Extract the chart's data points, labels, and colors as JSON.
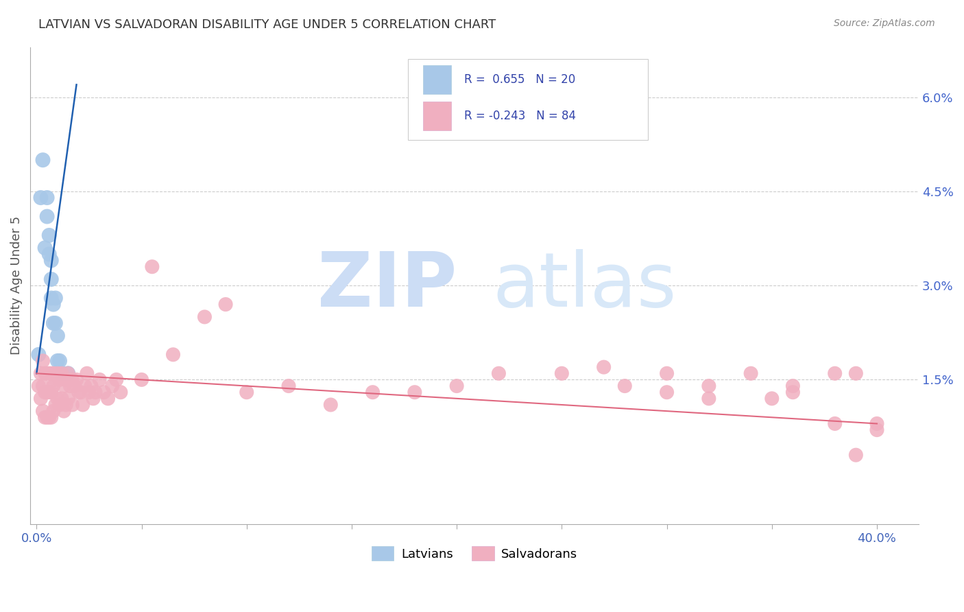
{
  "title": "LATVIAN VS SALVADORAN DISABILITY AGE UNDER 5 CORRELATION CHART",
  "source": "Source: ZipAtlas.com",
  "ylabel": "Disability Age Under 5",
  "ytick_labels": [
    "6.0%",
    "4.5%",
    "3.0%",
    "1.5%"
  ],
  "ytick_values": [
    0.06,
    0.045,
    0.03,
    0.015
  ],
  "xtick_values": [
    0.0,
    0.05,
    0.1,
    0.15,
    0.2,
    0.25,
    0.3,
    0.35,
    0.4
  ],
  "xlim": [
    -0.003,
    0.42
  ],
  "ylim": [
    -0.008,
    0.068
  ],
  "latvian_R": 0.655,
  "latvian_N": 20,
  "salvadoran_R": -0.243,
  "salvadoran_N": 84,
  "latvian_color": "#a8c8e8",
  "latvian_line_color": "#2060b0",
  "salvadoran_color": "#f0afc0",
  "salvadoran_line_color": "#e06880",
  "background_color": "#ffffff",
  "legend_color": "#3344aa",
  "latvian_line_x": [
    0.0,
    0.019
  ],
  "latvian_line_y": [
    0.016,
    0.062
  ],
  "salvadoran_line_x": [
    0.0,
    0.4
  ],
  "salvadoran_line_y": [
    0.016,
    0.008
  ],
  "latvian_points_x": [
    0.001,
    0.002,
    0.003,
    0.004,
    0.005,
    0.005,
    0.006,
    0.006,
    0.007,
    0.007,
    0.007,
    0.008,
    0.008,
    0.009,
    0.009,
    0.01,
    0.01,
    0.011,
    0.012,
    0.015
  ],
  "latvian_points_y": [
    0.019,
    0.044,
    0.05,
    0.036,
    0.041,
    0.044,
    0.035,
    0.038,
    0.028,
    0.031,
    0.034,
    0.024,
    0.027,
    0.024,
    0.028,
    0.018,
    0.022,
    0.018,
    0.016,
    0.016
  ],
  "salvadoran_points_x": [
    0.001,
    0.002,
    0.002,
    0.003,
    0.003,
    0.003,
    0.004,
    0.004,
    0.004,
    0.005,
    0.005,
    0.005,
    0.006,
    0.006,
    0.006,
    0.007,
    0.007,
    0.007,
    0.008,
    0.008,
    0.008,
    0.009,
    0.009,
    0.01,
    0.01,
    0.011,
    0.011,
    0.012,
    0.012,
    0.013,
    0.013,
    0.014,
    0.014,
    0.015,
    0.015,
    0.016,
    0.017,
    0.017,
    0.018,
    0.019,
    0.02,
    0.021,
    0.022,
    0.023,
    0.024,
    0.025,
    0.026,
    0.027,
    0.028,
    0.03,
    0.032,
    0.034,
    0.036,
    0.038,
    0.04,
    0.05,
    0.055,
    0.065,
    0.08,
    0.09,
    0.1,
    0.12,
    0.14,
    0.16,
    0.18,
    0.2,
    0.22,
    0.25,
    0.27,
    0.3,
    0.32,
    0.34,
    0.36,
    0.38,
    0.39,
    0.4,
    0.35,
    0.38,
    0.28,
    0.3,
    0.32,
    0.36,
    0.39,
    0.4
  ],
  "salvadoran_points_y": [
    0.014,
    0.016,
    0.012,
    0.018,
    0.014,
    0.01,
    0.016,
    0.013,
    0.009,
    0.016,
    0.013,
    0.009,
    0.016,
    0.013,
    0.009,
    0.016,
    0.013,
    0.009,
    0.016,
    0.014,
    0.01,
    0.015,
    0.011,
    0.016,
    0.012,
    0.015,
    0.011,
    0.016,
    0.012,
    0.014,
    0.01,
    0.015,
    0.011,
    0.016,
    0.012,
    0.014,
    0.015,
    0.011,
    0.014,
    0.015,
    0.013,
    0.013,
    0.011,
    0.014,
    0.016,
    0.013,
    0.014,
    0.012,
    0.013,
    0.015,
    0.013,
    0.012,
    0.014,
    0.015,
    0.013,
    0.015,
    0.033,
    0.019,
    0.025,
    0.027,
    0.013,
    0.014,
    0.011,
    0.013,
    0.013,
    0.014,
    0.016,
    0.016,
    0.017,
    0.016,
    0.014,
    0.016,
    0.014,
    0.008,
    0.016,
    0.008,
    0.012,
    0.016,
    0.014,
    0.013,
    0.012,
    0.013,
    0.003,
    0.007
  ]
}
